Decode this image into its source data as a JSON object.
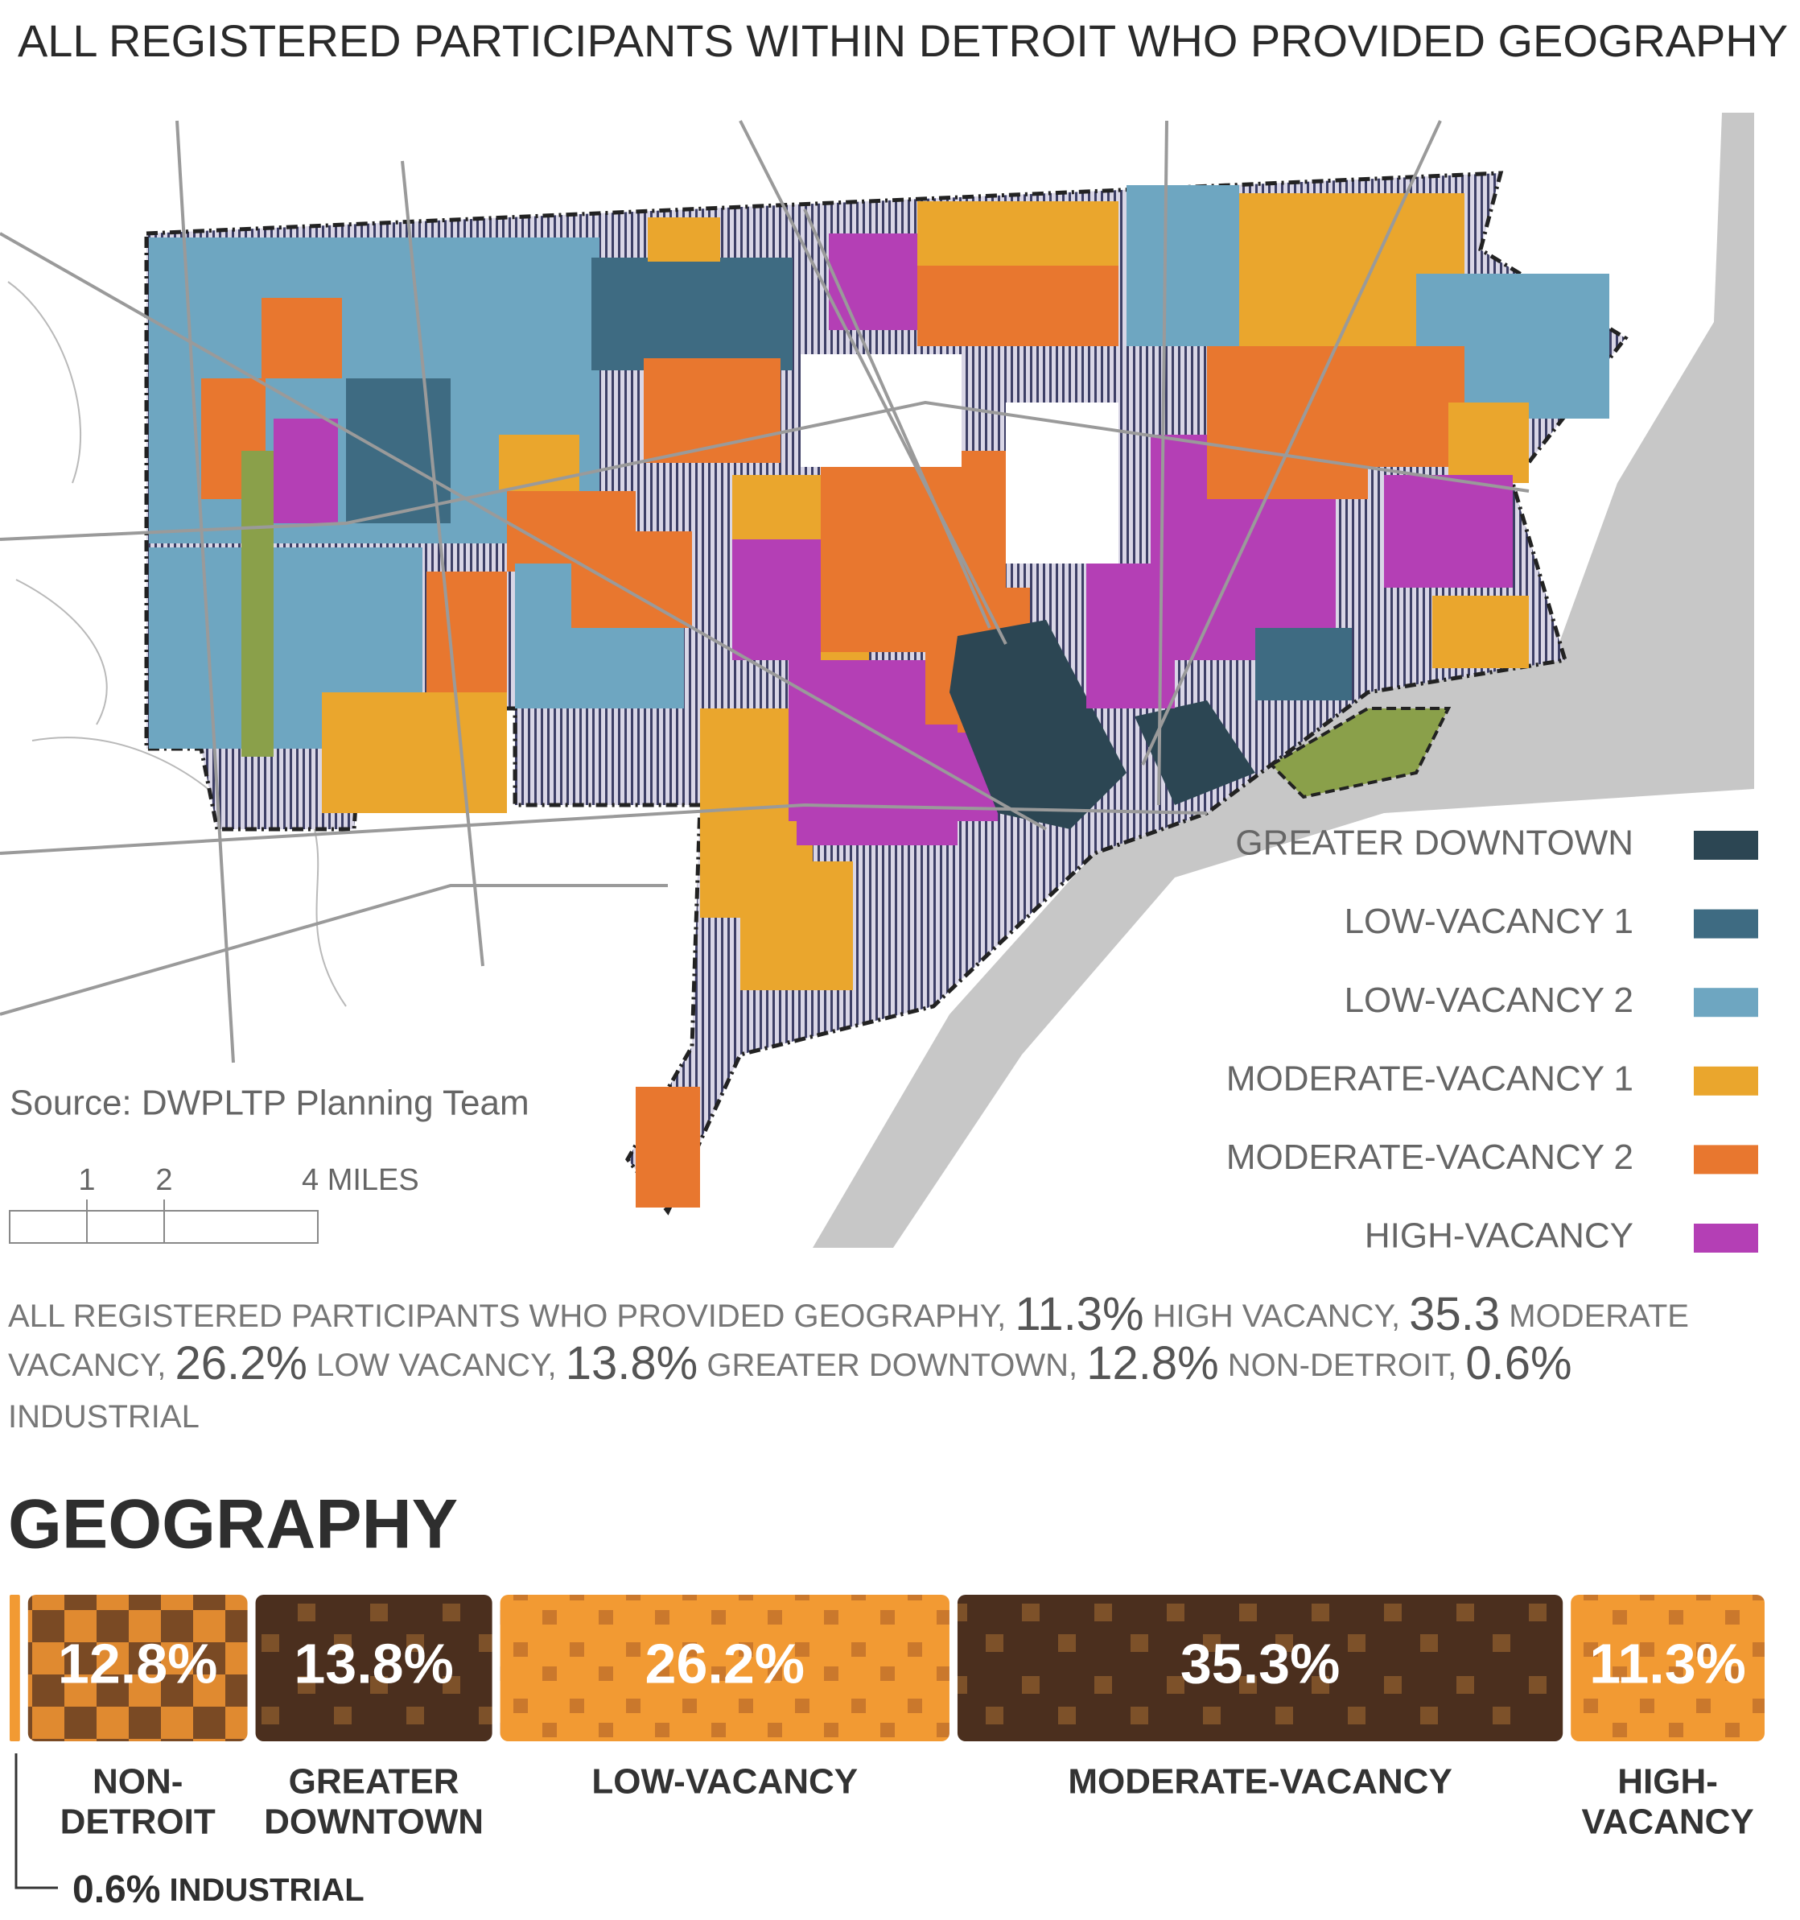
{
  "title": "ALL REGISTERED PARTICIPANTS WITHIN DETROIT WHO PROVIDED GEOGRAPHY",
  "map": {
    "legend": [
      {
        "label": "GREATER DOWNTOWN",
        "color": "#2c4653"
      },
      {
        "label": "LOW-VACANCY 1",
        "color": "#3e6b82"
      },
      {
        "label": "LOW-VACANCY 2",
        "color": "#6ea6c1"
      },
      {
        "label": "MODERATE-VACANCY 1",
        "color": "#eaa62d"
      },
      {
        "label": "MODERATE-VACANCY 2",
        "color": "#e8772f"
      },
      {
        "label": "HIGH-VACANCY",
        "color": "#b43fb5"
      }
    ],
    "source": "Source: DWPLTP Planning Team",
    "scale_labels": [
      "1",
      "2",
      "4 MILES"
    ]
  },
  "caption": [
    {
      "text": "ALL REGISTERED PARTICIPANTS WHO PROVIDED GEOGRAPHY, ",
      "big": false
    },
    {
      "text": "11.3%",
      "big": true
    },
    {
      "text": " HIGH VACANCY, ",
      "big": false
    },
    {
      "text": "35.3",
      "big": true
    },
    {
      "text": " MODERATE VACANCY, ",
      "big": false
    },
    {
      "text": "26.2%",
      "big": true
    },
    {
      "text": " LOW VACANCY, ",
      "big": false
    },
    {
      "text": "13.8%",
      "big": true
    },
    {
      "text": " GREATER DOWNTOWN, ",
      "big": false
    },
    {
      "text": "12.8%",
      "big": true
    },
    {
      "text": " NON-DETROIT, ",
      "big": false
    },
    {
      "text": "0.6%",
      "big": true
    },
    {
      "text": " INDUSTRIAL",
      "big": false
    }
  ],
  "geography": {
    "heading": "GEOGRAPHY",
    "segments": [
      {
        "label": [
          "INDUSTRIAL"
        ],
        "value": 0.6,
        "value_label": "0.6%"
      },
      {
        "label": [
          "NON-",
          "DETROIT"
        ],
        "value": 12.8,
        "value_label": "12.8%"
      },
      {
        "label": [
          "GREATER",
          "DOWNTOWN"
        ],
        "value": 13.8,
        "value_label": "13.8%"
      },
      {
        "label": [
          "LOW-VACANCY"
        ],
        "value": 26.2,
        "value_label": "26.2%"
      },
      {
        "label": [
          "MODERATE-VACANCY"
        ],
        "value": 35.3,
        "value_label": "35.3%"
      },
      {
        "label": [
          "HIGH-",
          "VACANCY"
        ],
        "value": 11.3,
        "value_label": "11.3%"
      }
    ]
  }
}
